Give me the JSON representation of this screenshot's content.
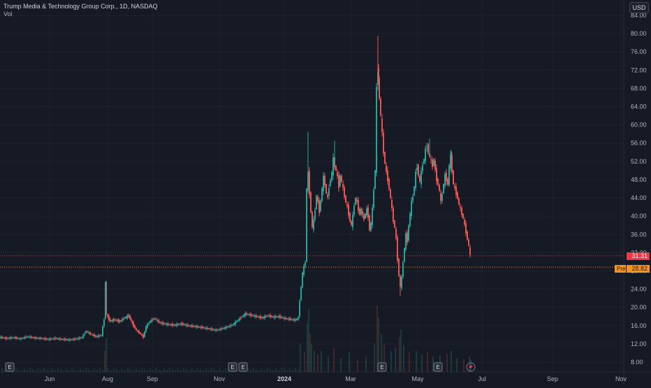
{
  "header": {
    "symbol_title": "Trump Media & Technology Group Corp., 1D, NASDAQ",
    "volume_label": "Vol",
    "currency": "USD"
  },
  "price_tags": {
    "last": "31.31",
    "pre_label": "Pre",
    "pre": "28.82"
  },
  "colors": {
    "background": "#161a25",
    "up": "#26a69a",
    "down": "#ef5350",
    "last_line": "#f23645",
    "pre_line": "#f7931a"
  },
  "events": {
    "earnings_label": "E",
    "split_icon": "lightning-icon"
  },
  "chart_data": {
    "type": "candlestick",
    "ylim": [
      7,
      85
    ],
    "y_ticks": [
      "84.00",
      "80.00",
      "76.00",
      "72.00",
      "68.00",
      "64.00",
      "60.00",
      "56.00",
      "52.00",
      "48.00",
      "44.00",
      "40.00",
      "36.00",
      "32.00",
      "28.00",
      "24.00",
      "20.00",
      "16.00",
      "12.00",
      "8.00"
    ],
    "x_ticks": [
      "Jun",
      "Aug",
      "Sep",
      "Nov",
      "2024",
      "Mar",
      "May",
      "Jul",
      "Sep",
      "Nov"
    ],
    "last_price": 31.31,
    "pre_market_price": 28.82,
    "price_path": [
      [
        0,
        13.5
      ],
      [
        10,
        13.2
      ],
      [
        20,
        13.4
      ],
      [
        30,
        13.1
      ],
      [
        40,
        13.6
      ],
      [
        50,
        13.3
      ],
      [
        60,
        13.2
      ],
      [
        70,
        13.0
      ],
      [
        80,
        13.2
      ],
      [
        90,
        13.0
      ],
      [
        100,
        12.9
      ],
      [
        110,
        13.1
      ],
      [
        118,
        13.4
      ],
      [
        124,
        14.8
      ],
      [
        130,
        14.2
      ],
      [
        138,
        13.6
      ],
      [
        146,
        13.9
      ],
      [
        150,
        17.5
      ],
      [
        151,
        25.5
      ],
      [
        153,
        18.5
      ],
      [
        158,
        17.0
      ],
      [
        165,
        17.3
      ],
      [
        172,
        16.9
      ],
      [
        178,
        17.6
      ],
      [
        185,
        18.2
      ],
      [
        190,
        16.5
      ],
      [
        196,
        15.0
      ],
      [
        202,
        14.2
      ],
      [
        206,
        13.5
      ],
      [
        210,
        15.8
      ],
      [
        216,
        17.0
      ],
      [
        222,
        17.6
      ],
      [
        230,
        16.6
      ],
      [
        240,
        16.3
      ],
      [
        250,
        16.1
      ],
      [
        260,
        16.4
      ],
      [
        270,
        16.0
      ],
      [
        280,
        15.8
      ],
      [
        290,
        15.6
      ],
      [
        300,
        15.3
      ],
      [
        310,
        15.0
      ],
      [
        318,
        15.3
      ],
      [
        326,
        15.7
      ],
      [
        334,
        16.2
      ],
      [
        340,
        17.0
      ],
      [
        346,
        17.8
      ],
      [
        352,
        18.6
      ],
      [
        360,
        18.3
      ],
      [
        368,
        18.0
      ],
      [
        376,
        17.7
      ],
      [
        384,
        18.2
      ],
      [
        392,
        17.9
      ],
      [
        400,
        18.0
      ],
      [
        408,
        17.6
      ],
      [
        416,
        17.4
      ],
      [
        424,
        17.2
      ],
      [
        428,
        17.8
      ],
      [
        430,
        21.5
      ],
      [
        432,
        24.5
      ],
      [
        434,
        27.5
      ],
      [
        436,
        28.8
      ],
      [
        438,
        30.0
      ],
      [
        440,
        46.0
      ],
      [
        442,
        49.5
      ],
      [
        444,
        45.0
      ],
      [
        446,
        41.0
      ],
      [
        448,
        37.5
      ],
      [
        450,
        39.0
      ],
      [
        452,
        41.5
      ],
      [
        454,
        44.5
      ],
      [
        456,
        43.0
      ],
      [
        458,
        41.0
      ],
      [
        460,
        43.5
      ],
      [
        462,
        46.0
      ],
      [
        464,
        48.5
      ],
      [
        466,
        47.0
      ],
      [
        468,
        45.0
      ],
      [
        470,
        44.0
      ],
      [
        472,
        46.5
      ],
      [
        474,
        48.0
      ],
      [
        476,
        49.5
      ],
      [
        478,
        52.5
      ],
      [
        480,
        51.0
      ],
      [
        482,
        50.0
      ],
      [
        484,
        48.5
      ],
      [
        486,
        46.5
      ],
      [
        488,
        49.0
      ],
      [
        490,
        47.5
      ],
      [
        492,
        46.0
      ],
      [
        494,
        44.5
      ],
      [
        496,
        43.0
      ],
      [
        498,
        42.0
      ],
      [
        500,
        40.5
      ],
      [
        502,
        39.0
      ],
      [
        504,
        38.0
      ],
      [
        506,
        40.0
      ],
      [
        508,
        42.5
      ],
      [
        510,
        44.0
      ],
      [
        512,
        43.0
      ],
      [
        514,
        41.5
      ],
      [
        516,
        40.5
      ],
      [
        518,
        41.5
      ],
      [
        520,
        40.0
      ],
      [
        522,
        39.5
      ],
      [
        524,
        40.5
      ],
      [
        526,
        41.5
      ],
      [
        528,
        40.0
      ],
      [
        530,
        37.0
      ],
      [
        532,
        38.5
      ],
      [
        534,
        41.5
      ],
      [
        536,
        46.0
      ],
      [
        538,
        50.0
      ],
      [
        540,
        68.0
      ],
      [
        541,
        72.0
      ],
      [
        542,
        70.0
      ],
      [
        544,
        66.0
      ],
      [
        546,
        62.0
      ],
      [
        548,
        58.0
      ],
      [
        550,
        54.0
      ],
      [
        552,
        51.5
      ],
      [
        554,
        49.5
      ],
      [
        556,
        48.0
      ],
      [
        558,
        46.0
      ],
      [
        560,
        44.0
      ],
      [
        562,
        41.5
      ],
      [
        564,
        39.0
      ],
      [
        566,
        37.5
      ],
      [
        568,
        35.0
      ],
      [
        570,
        30.5
      ],
      [
        572,
        27.0
      ],
      [
        574,
        24.5
      ],
      [
        576,
        26.5
      ],
      [
        578,
        30.0
      ],
      [
        580,
        33.0
      ],
      [
        582,
        36.0
      ],
      [
        584,
        34.5
      ],
      [
        586,
        38.0
      ],
      [
        588,
        40.5
      ],
      [
        590,
        43.0
      ],
      [
        592,
        44.5
      ],
      [
        594,
        46.5
      ],
      [
        596,
        49.5
      ],
      [
        598,
        51.0
      ],
      [
        600,
        49.0
      ],
      [
        602,
        47.5
      ],
      [
        604,
        49.5
      ],
      [
        606,
        51.5
      ],
      [
        608,
        52.5
      ],
      [
        610,
        54.5
      ],
      [
        612,
        55.5
      ],
      [
        614,
        54.0
      ],
      [
        616,
        53.0
      ],
      [
        618,
        52.0
      ],
      [
        620,
        51.0
      ],
      [
        622,
        52.5
      ],
      [
        624,
        50.0
      ],
      [
        626,
        48.0
      ],
      [
        628,
        47.0
      ],
      [
        630,
        45.5
      ],
      [
        632,
        43.0
      ],
      [
        634,
        45.0
      ],
      [
        636,
        47.0
      ],
      [
        638,
        49.0
      ],
      [
        640,
        48.0
      ],
      [
        642,
        47.0
      ],
      [
        644,
        51.0
      ],
      [
        646,
        53.0
      ],
      [
        648,
        50.0
      ],
      [
        650,
        47.0
      ],
      [
        652,
        46.0
      ],
      [
        654,
        45.0
      ],
      [
        656,
        44.0
      ],
      [
        658,
        42.5
      ],
      [
        660,
        41.5
      ],
      [
        662,
        40.5
      ],
      [
        664,
        39.5
      ],
      [
        666,
        38.0
      ],
      [
        668,
        36.5
      ],
      [
        670,
        35.0
      ],
      [
        672,
        33.5
      ],
      [
        674,
        31.31
      ]
    ],
    "spikes": [
      [
        152,
        25.8
      ],
      [
        441,
        58.5
      ],
      [
        479,
        56.5
      ],
      [
        541,
        79.5
      ],
      [
        573,
        22.5
      ],
      [
        615,
        57.0
      ],
      [
        646,
        54.5
      ]
    ]
  }
}
